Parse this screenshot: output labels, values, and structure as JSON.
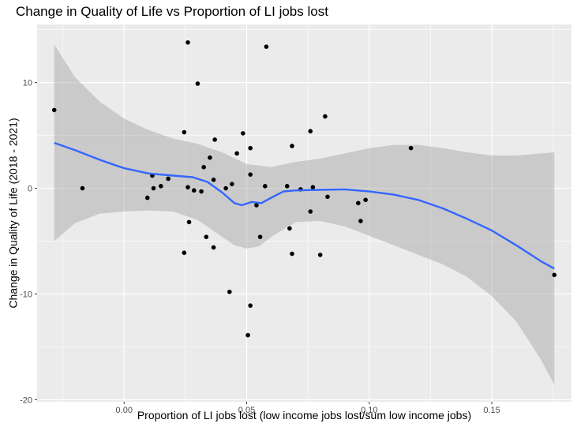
{
  "chart_data": {
    "type": "scatter",
    "title": "Change in Quality of Life vs Proportion of LI jobs lost",
    "xlabel": "Proportion of LI jobs lost (low income jobs lost/sum low income jobs)",
    "ylabel": "Change in Quality of Life (2018 - 2021)",
    "xlim": [
      -0.0355,
      0.1825
    ],
    "ylim": [
      -20.2,
      15.5
    ],
    "x_ticks": [
      {
        "value": 0.0,
        "label": "0.00"
      },
      {
        "value": 0.05,
        "label": "0.05"
      },
      {
        "value": 0.1,
        "label": "0.10"
      },
      {
        "value": 0.15,
        "label": "0.15"
      }
    ],
    "y_ticks": [
      {
        "value": -20,
        "label": "-20"
      },
      {
        "value": -10,
        "label": "-10"
      },
      {
        "value": 0,
        "label": "0"
      },
      {
        "value": 10,
        "label": "10"
      }
    ],
    "grid": true,
    "colors": {
      "panel": "#ebebeb",
      "grid": "#ffffff",
      "points": "#000000",
      "smooth_line": "#3366ff",
      "ribbon": "#999999"
    },
    "points": [
      {
        "x": -0.0285,
        "y": 7.4
      },
      {
        "x": -0.017,
        "y": 0.0
      },
      {
        "x": 0.0095,
        "y": -0.9
      },
      {
        "x": 0.0115,
        "y": 1.2
      },
      {
        "x": 0.012,
        "y": 0.0
      },
      {
        "x": 0.015,
        "y": 0.2
      },
      {
        "x": 0.018,
        "y": 0.9
      },
      {
        "x": 0.0245,
        "y": 5.3
      },
      {
        "x": 0.0245,
        "y": -6.1
      },
      {
        "x": 0.026,
        "y": 13.8
      },
      {
        "x": 0.026,
        "y": 0.1
      },
      {
        "x": 0.0265,
        "y": -3.2
      },
      {
        "x": 0.0285,
        "y": -0.2
      },
      {
        "x": 0.03,
        "y": 9.9
      },
      {
        "x": 0.0315,
        "y": -0.3
      },
      {
        "x": 0.0325,
        "y": 2.0
      },
      {
        "x": 0.0335,
        "y": -4.6
      },
      {
        "x": 0.035,
        "y": 2.9
      },
      {
        "x": 0.0365,
        "y": 0.8
      },
      {
        "x": 0.037,
        "y": 4.6
      },
      {
        "x": 0.0365,
        "y": -5.6
      },
      {
        "x": 0.0415,
        "y": 0.0
      },
      {
        "x": 0.043,
        "y": -9.8
      },
      {
        "x": 0.044,
        "y": 0.4
      },
      {
        "x": 0.046,
        "y": 3.3
      },
      {
        "x": 0.0485,
        "y": 5.2
      },
      {
        "x": 0.0505,
        "y": -13.9
      },
      {
        "x": 0.0515,
        "y": 3.8
      },
      {
        "x": 0.0515,
        "y": 1.3
      },
      {
        "x": 0.0515,
        "y": -11.1
      },
      {
        "x": 0.054,
        "y": -1.6
      },
      {
        "x": 0.0555,
        "y": -4.6
      },
      {
        "x": 0.0575,
        "y": 0.2
      },
      {
        "x": 0.058,
        "y": 13.4
      },
      {
        "x": 0.0665,
        "y": 0.2
      },
      {
        "x": 0.0675,
        "y": -3.8
      },
      {
        "x": 0.0685,
        "y": 4.0
      },
      {
        "x": 0.0685,
        "y": -6.2
      },
      {
        "x": 0.072,
        "y": -0.1
      },
      {
        "x": 0.076,
        "y": 5.4
      },
      {
        "x": 0.076,
        "y": -2.2
      },
      {
        "x": 0.077,
        "y": 0.1
      },
      {
        "x": 0.08,
        "y": -6.3
      },
      {
        "x": 0.082,
        "y": 6.8
      },
      {
        "x": 0.083,
        "y": -0.8
      },
      {
        "x": 0.0955,
        "y": -1.4
      },
      {
        "x": 0.0965,
        "y": -3.1
      },
      {
        "x": 0.0985,
        "y": -1.1
      },
      {
        "x": 0.117,
        "y": 3.8
      },
      {
        "x": 0.1755,
        "y": -8.2
      }
    ],
    "smooth_series": {
      "method": "loess",
      "fit": [
        {
          "x": -0.0285,
          "y": 4.3
        },
        {
          "x": -0.02,
          "y": 3.6
        },
        {
          "x": -0.01,
          "y": 2.7
        },
        {
          "x": 0.0,
          "y": 1.9
        },
        {
          "x": 0.01,
          "y": 1.4
        },
        {
          "x": 0.02,
          "y": 1.2
        },
        {
          "x": 0.028,
          "y": 1.05
        },
        {
          "x": 0.034,
          "y": 0.6
        },
        {
          "x": 0.04,
          "y": -0.4
        },
        {
          "x": 0.045,
          "y": -1.4
        },
        {
          "x": 0.048,
          "y": -1.6
        },
        {
          "x": 0.052,
          "y": -1.3
        },
        {
          "x": 0.056,
          "y": -1.4
        },
        {
          "x": 0.06,
          "y": -0.9
        },
        {
          "x": 0.065,
          "y": -0.3
        },
        {
          "x": 0.07,
          "y": -0.2
        },
        {
          "x": 0.08,
          "y": -0.15
        },
        {
          "x": 0.09,
          "y": -0.1
        },
        {
          "x": 0.1,
          "y": -0.3
        },
        {
          "x": 0.11,
          "y": -0.6
        },
        {
          "x": 0.12,
          "y": -1.1
        },
        {
          "x": 0.13,
          "y": -1.9
        },
        {
          "x": 0.14,
          "y": -2.9
        },
        {
          "x": 0.15,
          "y": -4.0
        },
        {
          "x": 0.16,
          "y": -5.4
        },
        {
          "x": 0.17,
          "y": -6.9
        },
        {
          "x": 0.1755,
          "y": -7.6
        }
      ],
      "upper": [
        {
          "x": -0.0285,
          "y": 13.6
        },
        {
          "x": -0.02,
          "y": 10.5
        },
        {
          "x": -0.01,
          "y": 8.2
        },
        {
          "x": 0.0,
          "y": 6.6
        },
        {
          "x": 0.01,
          "y": 5.5
        },
        {
          "x": 0.02,
          "y": 4.7
        },
        {
          "x": 0.03,
          "y": 4.2
        },
        {
          "x": 0.04,
          "y": 3.4
        },
        {
          "x": 0.05,
          "y": 2.3
        },
        {
          "x": 0.06,
          "y": 2.0
        },
        {
          "x": 0.07,
          "y": 2.5
        },
        {
          "x": 0.08,
          "y": 2.8
        },
        {
          "x": 0.09,
          "y": 3.3
        },
        {
          "x": 0.1,
          "y": 3.8
        },
        {
          "x": 0.11,
          "y": 4.1
        },
        {
          "x": 0.12,
          "y": 4.1
        },
        {
          "x": 0.13,
          "y": 3.8
        },
        {
          "x": 0.14,
          "y": 3.4
        },
        {
          "x": 0.15,
          "y": 3.1
        },
        {
          "x": 0.16,
          "y": 3.1
        },
        {
          "x": 0.17,
          "y": 3.3
        },
        {
          "x": 0.1755,
          "y": 3.4
        }
      ],
      "lower": [
        {
          "x": -0.0285,
          "y": -5.0
        },
        {
          "x": -0.02,
          "y": -3.3
        },
        {
          "x": -0.01,
          "y": -2.4
        },
        {
          "x": 0.0,
          "y": -2.2
        },
        {
          "x": 0.01,
          "y": -2.1
        },
        {
          "x": 0.02,
          "y": -2.2
        },
        {
          "x": 0.03,
          "y": -3.0
        },
        {
          "x": 0.04,
          "y": -4.6
        },
        {
          "x": 0.045,
          "y": -5.4
        },
        {
          "x": 0.05,
          "y": -5.7
        },
        {
          "x": 0.055,
          "y": -5.5
        },
        {
          "x": 0.06,
          "y": -4.6
        },
        {
          "x": 0.07,
          "y": -3.2
        },
        {
          "x": 0.08,
          "y": -3.1
        },
        {
          "x": 0.09,
          "y": -3.6
        },
        {
          "x": 0.1,
          "y": -4.5
        },
        {
          "x": 0.11,
          "y": -5.4
        },
        {
          "x": 0.12,
          "y": -6.3
        },
        {
          "x": 0.13,
          "y": -7.2
        },
        {
          "x": 0.14,
          "y": -8.4
        },
        {
          "x": 0.15,
          "y": -10.2
        },
        {
          "x": 0.16,
          "y": -12.6
        },
        {
          "x": 0.17,
          "y": -16.2
        },
        {
          "x": 0.1755,
          "y": -18.6
        }
      ]
    }
  }
}
